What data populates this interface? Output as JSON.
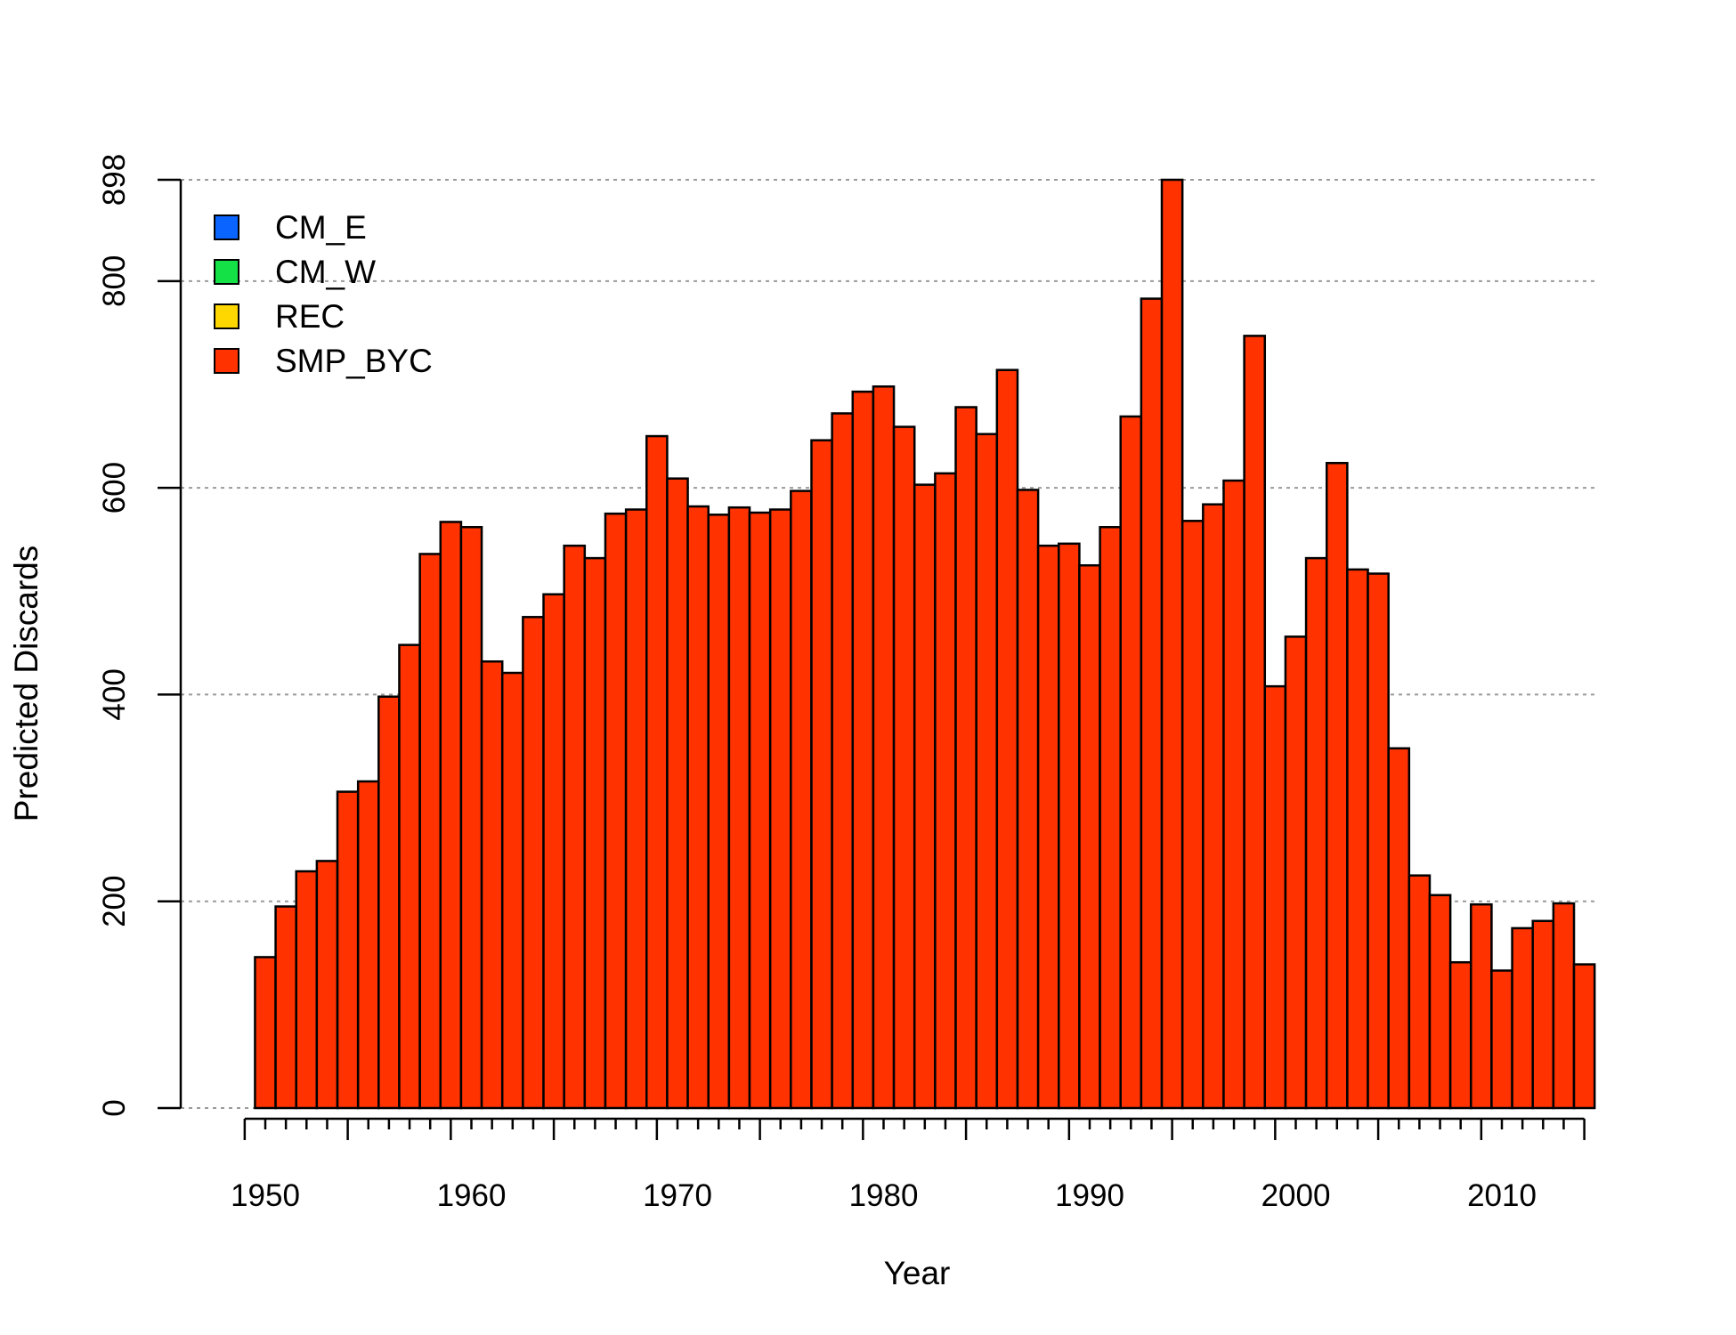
{
  "chart_data": {
    "type": "bar",
    "stacked": true,
    "xlabel": "Year",
    "ylabel": "Predicted Discards",
    "ylim": [
      0,
      898
    ],
    "xlim": [
      1949,
      2014
    ],
    "yticks": [
      0,
      200,
      400,
      600,
      800,
      898
    ],
    "xticks_major": [
      1950,
      1960,
      1970,
      1980,
      1990,
      2000,
      2010
    ],
    "grid": "horizontal dotted at y ticks",
    "legend_position": "top-left",
    "x": [
      1950,
      1951,
      1952,
      1953,
      1954,
      1955,
      1956,
      1957,
      1958,
      1959,
      1960,
      1961,
      1962,
      1963,
      1964,
      1965,
      1966,
      1967,
      1968,
      1969,
      1970,
      1971,
      1972,
      1973,
      1974,
      1975,
      1976,
      1977,
      1978,
      1979,
      1980,
      1981,
      1982,
      1983,
      1984,
      1985,
      1986,
      1987,
      1988,
      1989,
      1990,
      1991,
      1992,
      1993,
      1994,
      1995,
      1996,
      1997,
      1998,
      1999,
      2000,
      2001,
      2002,
      2003,
      2004,
      2005,
      2006,
      2007,
      2008,
      2009,
      2010,
      2011,
      2012,
      2013,
      2014
    ],
    "series": [
      {
        "name": "CM_E",
        "color": "#0A64FF",
        "values": [
          0,
          0,
          0,
          0,
          0,
          0,
          0,
          0,
          0,
          0,
          0,
          0,
          0,
          0,
          0,
          0,
          0,
          0,
          0,
          0,
          0,
          0,
          0,
          0,
          0,
          0,
          0,
          0,
          0,
          0,
          0,
          0,
          0,
          0,
          0,
          0,
          0,
          0,
          0,
          0,
          0,
          0,
          0,
          0,
          0,
          0,
          0,
          0,
          0,
          0,
          0,
          0,
          0,
          0,
          0,
          0,
          0,
          0,
          0,
          0,
          0,
          0,
          0,
          0,
          0
        ]
      },
      {
        "name": "CM_W",
        "color": "#14E146",
        "values": [
          0,
          0,
          0,
          0,
          0,
          0,
          0,
          0,
          0,
          0,
          0,
          0,
          0,
          0,
          0,
          0,
          0,
          0,
          0,
          0,
          0,
          0,
          0,
          0,
          0,
          0,
          0,
          0,
          0,
          0,
          0,
          0,
          0,
          0,
          0,
          0,
          0,
          0,
          0,
          0,
          0,
          0,
          0,
          0,
          0,
          0,
          0,
          0,
          0,
          0,
          0,
          0,
          0,
          0,
          0,
          0,
          0,
          0,
          0,
          0,
          0,
          0,
          0,
          0,
          0
        ]
      },
      {
        "name": "REC",
        "color": "#FFD700",
        "values": [
          0,
          0,
          0,
          0,
          0,
          0,
          0,
          0,
          0,
          0,
          0,
          0,
          0,
          0,
          0,
          0,
          0,
          0,
          0,
          0,
          0,
          0,
          0,
          0,
          0,
          0,
          0,
          0,
          0,
          0,
          0,
          0,
          0,
          0,
          0,
          0,
          0,
          0,
          0,
          0,
          0,
          0,
          0,
          0,
          0,
          0,
          0,
          0,
          0,
          0,
          0,
          0,
          0,
          0,
          0,
          0,
          0,
          0,
          0,
          0,
          0,
          0,
          0,
          0,
          0
        ]
      },
      {
        "name": "SMP_BYC",
        "color": "#FF3200",
        "values": [
          146,
          195,
          229,
          239,
          306,
          316,
          398,
          448,
          536,
          567,
          562,
          432,
          421,
          475,
          497,
          544,
          532,
          575,
          579,
          650,
          609,
          582,
          574,
          581,
          576,
          579,
          597,
          646,
          672,
          693,
          698,
          659,
          603,
          614,
          678,
          652,
          714,
          598,
          544,
          546,
          525,
          562,
          669,
          783,
          898,
          568,
          584,
          607,
          747,
          408,
          456,
          532,
          624,
          521,
          517,
          348,
          225,
          206,
          141,
          197,
          133,
          174,
          181,
          198,
          139
        ]
      }
    ]
  }
}
